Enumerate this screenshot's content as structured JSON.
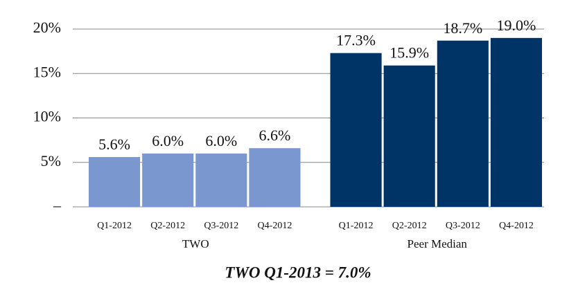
{
  "chart_data": {
    "type": "bar",
    "categories": [
      "Q1-2012",
      "Q2-2012",
      "Q3-2012",
      "Q4-2012"
    ],
    "series": [
      {
        "name": "TWO",
        "color": "#7b97d0",
        "values": [
          5.6,
          6.0,
          6.0,
          6.6
        ],
        "value_labels": [
          "5.6%",
          "6.0%",
          "6.0%",
          "6.6%"
        ]
      },
      {
        "name": "Peer Median",
        "color": "#003366",
        "values": [
          17.3,
          15.9,
          18.7,
          19.0
        ],
        "value_labels": [
          "17.3%",
          "15.9%",
          "18.7%",
          "19.0%"
        ]
      }
    ],
    "ylim": [
      0,
      20
    ],
    "yticks": [
      {
        "value": 0,
        "label": "–"
      },
      {
        "value": 5,
        "label": "5%"
      },
      {
        "value": 10,
        "label": "10%"
      },
      {
        "value": 15,
        "label": "15%"
      },
      {
        "value": 20,
        "label": "20%"
      }
    ],
    "grid": true,
    "annotation": "TWO Q1-2013 = 7.0%"
  }
}
